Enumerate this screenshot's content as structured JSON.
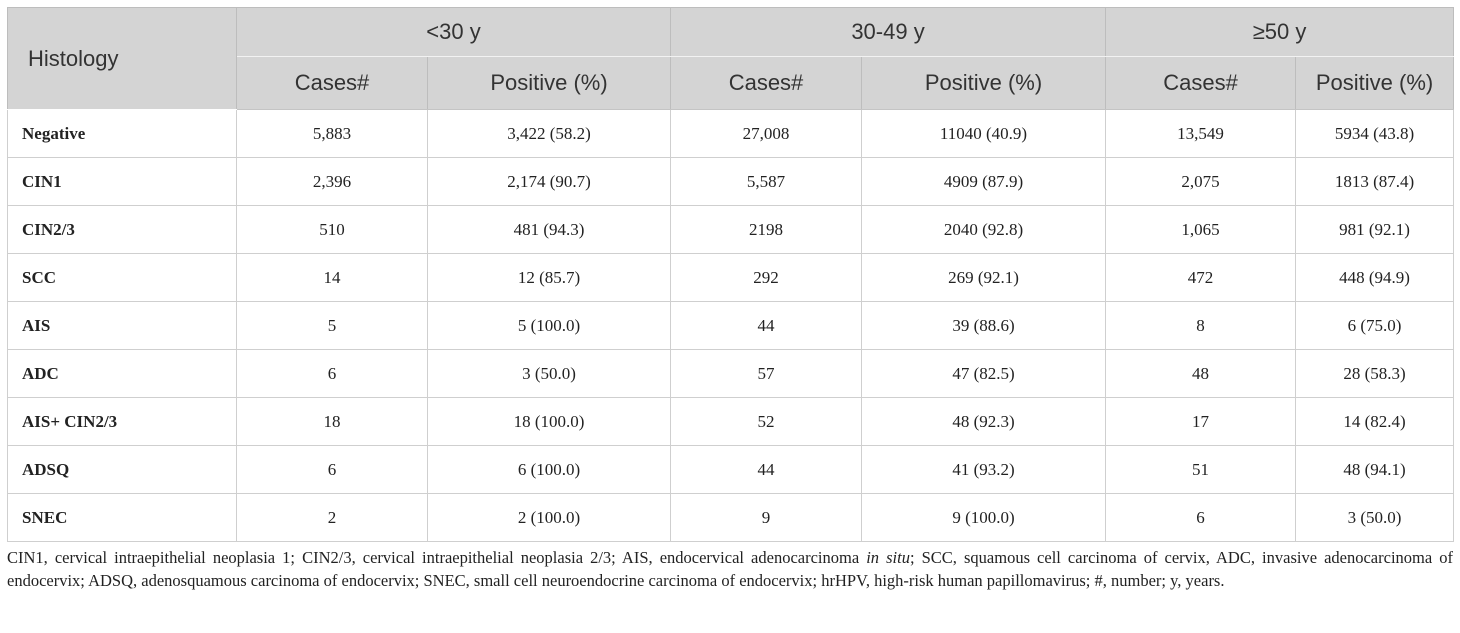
{
  "table": {
    "header_first": "Histology",
    "groups": [
      "<30 y",
      "30-49 y",
      "≥50 y"
    ],
    "subheaders": [
      "Cases#",
      "Positive (%)",
      "Cases#",
      "Positive (%)",
      "Cases#",
      "Positive (%)"
    ],
    "rows": [
      {
        "histology": "Negative",
        "cells": [
          "5,883",
          "3,422 (58.2)",
          "27,008",
          "11040 (40.9)",
          "13,549",
          "5934 (43.8)"
        ]
      },
      {
        "histology": "CIN1",
        "cells": [
          "2,396",
          "2,174 (90.7)",
          "5,587",
          "4909 (87.9)",
          "2,075",
          "1813 (87.4)"
        ]
      },
      {
        "histology": "CIN2/3",
        "cells": [
          "510",
          "481 (94.3)",
          "2198",
          "2040 (92.8)",
          "1,065",
          "981 (92.1)"
        ]
      },
      {
        "histology": "SCC",
        "cells": [
          "14",
          "12 (85.7)",
          "292",
          "269 (92.1)",
          "472",
          "448 (94.9)"
        ]
      },
      {
        "histology": "AIS",
        "cells": [
          "5",
          "5 (100.0)",
          "44",
          "39 (88.6)",
          "8",
          "6 (75.0)"
        ]
      },
      {
        "histology": "ADC",
        "cells": [
          "6",
          "3 (50.0)",
          "57",
          "47 (82.5)",
          "48",
          "28 (58.3)"
        ]
      },
      {
        "histology": "AIS+ CIN2/3",
        "cells": [
          "18",
          "18 (100.0)",
          "52",
          "48 (92.3)",
          "17",
          "14 (82.4)"
        ]
      },
      {
        "histology": "ADSQ",
        "cells": [
          "6",
          "6 (100.0)",
          "44",
          "41 (93.2)",
          "51",
          "48 (94.1)"
        ]
      },
      {
        "histology": "SNEC",
        "cells": [
          "2",
          "2 (100.0)",
          "9",
          "9 (100.0)",
          "6",
          "3 (50.0)"
        ]
      }
    ]
  },
  "footnote": {
    "part1": "CIN1, cervical intraepithelial neoplasia 1; CIN2/3, cervical intraepithelial neoplasia 2/3; AIS, endocervical adenocarcinoma ",
    "italic": "in situ",
    "part2": "; SCC, squamous cell carcinoma of cervix, ADC, invasive adenocarcinoma of endocervix; ADSQ, adenosquamous carcinoma of endocervix; SNEC, small cell neuroendocrine carcinoma of endocervix; hrHPV, high-risk human papillomavirus; #, number; y, years."
  }
}
